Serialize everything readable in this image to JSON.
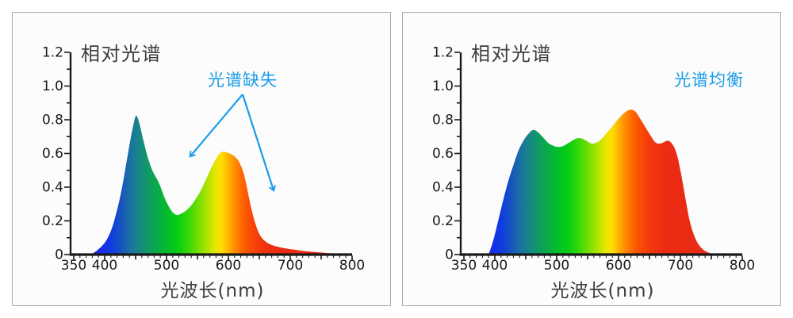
{
  "page": {
    "background": "#ffffff",
    "panel_background": "#fcfcfc",
    "panel_border": "#a9a9a9"
  },
  "colors": {
    "accent_blue": "#1b9ce8",
    "axis": "#1a1a1a",
    "title_text": "#3d3d3d",
    "spectrum_stops": [
      {
        "wl": 380,
        "color": "#2222d8"
      },
      {
        "wl": 398,
        "color": "#1530ea"
      },
      {
        "wl": 412,
        "color": "#0f3ede"
      },
      {
        "wl": 428,
        "color": "#1857bc"
      },
      {
        "wl": 443,
        "color": "#1b74a0"
      },
      {
        "wl": 458,
        "color": "#168a80"
      },
      {
        "wl": 472,
        "color": "#0f9c60"
      },
      {
        "wl": 487,
        "color": "#08ad44"
      },
      {
        "wl": 501,
        "color": "#04bd2c"
      },
      {
        "wl": 515,
        "color": "#02cb18"
      },
      {
        "wl": 529,
        "color": "#22d40c"
      },
      {
        "wl": 543,
        "color": "#52dc04"
      },
      {
        "wl": 556,
        "color": "#86e000"
      },
      {
        "wl": 569,
        "color": "#bce300"
      },
      {
        "wl": 580,
        "color": "#ebe600"
      },
      {
        "wl": 590,
        "color": "#ffdc00"
      },
      {
        "wl": 600,
        "color": "#ffb300"
      },
      {
        "wl": 610,
        "color": "#ff8f00"
      },
      {
        "wl": 620,
        "color": "#ff6d00"
      },
      {
        "wl": 632,
        "color": "#fb5104"
      },
      {
        "wl": 647,
        "color": "#f43d0c"
      },
      {
        "wl": 663,
        "color": "#ef3112"
      },
      {
        "wl": 685,
        "color": "#eb2b14"
      },
      {
        "wl": 800,
        "color": "#e92a13"
      }
    ]
  },
  "chart_data": [
    {
      "type": "area",
      "title": "相对光谱",
      "annotation": "光谱缺失",
      "xlabel": "光波长(nm)",
      "ylabel": "",
      "xlim": [
        350,
        800
      ],
      "ylim": [
        0,
        1.2
      ],
      "x_ticks_labeled": [
        350,
        400,
        500,
        600,
        700,
        800
      ],
      "x_tick_labels": [
        "350",
        "400",
        "500",
        "600",
        "700",
        "800"
      ],
      "y_ticks": [
        0,
        0.2,
        0.4,
        0.6,
        0.8,
        1.0,
        1.2
      ],
      "y_tick_labels": [
        "1.2",
        "1.0",
        "0.8",
        "0.6",
        "0.4",
        "0.2",
        "0"
      ],
      "fill": "spectral-gradient-by-wavelength",
      "x": [
        378,
        386,
        394,
        402,
        410,
        418,
        426,
        434,
        441,
        447,
        451,
        456,
        462,
        469,
        477,
        485,
        490,
        496,
        503,
        510,
        517,
        524,
        532,
        540,
        548,
        556,
        564,
        571,
        578,
        585,
        591,
        598,
        605,
        612,
        618,
        624,
        629,
        634,
        639,
        644,
        649,
        655,
        662,
        670,
        680,
        692,
        706,
        722,
        740,
        760,
        780,
        800
      ],
      "values": [
        0,
        0.02,
        0.045,
        0.08,
        0.14,
        0.235,
        0.36,
        0.52,
        0.67,
        0.78,
        0.825,
        0.78,
        0.685,
        0.585,
        0.5,
        0.445,
        0.405,
        0.345,
        0.29,
        0.25,
        0.235,
        0.243,
        0.262,
        0.292,
        0.335,
        0.385,
        0.448,
        0.505,
        0.555,
        0.595,
        0.61,
        0.605,
        0.595,
        0.575,
        0.545,
        0.49,
        0.415,
        0.325,
        0.245,
        0.18,
        0.13,
        0.095,
        0.072,
        0.057,
        0.046,
        0.037,
        0.029,
        0.021,
        0.015,
        0.009,
        0.005,
        0.002
      ]
    },
    {
      "type": "area",
      "title": "相对光谱",
      "annotation": "光谱均衡",
      "xlabel": "光波长(nm)",
      "ylabel": "",
      "xlim": [
        350,
        800
      ],
      "ylim": [
        0,
        1.2
      ],
      "x_ticks_labeled": [
        350,
        400,
        500,
        600,
        700,
        800
      ],
      "x_tick_labels": [
        "350",
        "400",
        "500",
        "600",
        "700",
        "800"
      ],
      "y_ticks": [
        0,
        0.2,
        0.4,
        0.6,
        0.8,
        1.0,
        1.2
      ],
      "y_tick_labels": [
        "1.2",
        "1.0",
        "0.8",
        "0.6",
        "0.4",
        "0.2",
        "0"
      ],
      "fill": "spectral-gradient-by-wavelength",
      "x": [
        390,
        398,
        406,
        414,
        422,
        430,
        438,
        446,
        454,
        462,
        470,
        478,
        487,
        495,
        503,
        511,
        519,
        527,
        535,
        543,
        551,
        557,
        564,
        572,
        580,
        588,
        596,
        604,
        612,
        620,
        628,
        636,
        644,
        652,
        658,
        664,
        671,
        678,
        684,
        690,
        695,
        700,
        705,
        710,
        715,
        721,
        728,
        736,
        745,
        755,
        768,
        790
      ],
      "values": [
        0,
        0.09,
        0.21,
        0.33,
        0.44,
        0.53,
        0.615,
        0.675,
        0.715,
        0.74,
        0.725,
        0.695,
        0.66,
        0.645,
        0.638,
        0.645,
        0.662,
        0.68,
        0.692,
        0.685,
        0.668,
        0.658,
        0.664,
        0.684,
        0.718,
        0.752,
        0.788,
        0.822,
        0.848,
        0.86,
        0.845,
        0.8,
        0.752,
        0.705,
        0.672,
        0.658,
        0.663,
        0.675,
        0.668,
        0.636,
        0.585,
        0.5,
        0.4,
        0.295,
        0.2,
        0.125,
        0.068,
        0.032,
        0.012,
        0.004,
        0.001,
        0
      ]
    }
  ]
}
